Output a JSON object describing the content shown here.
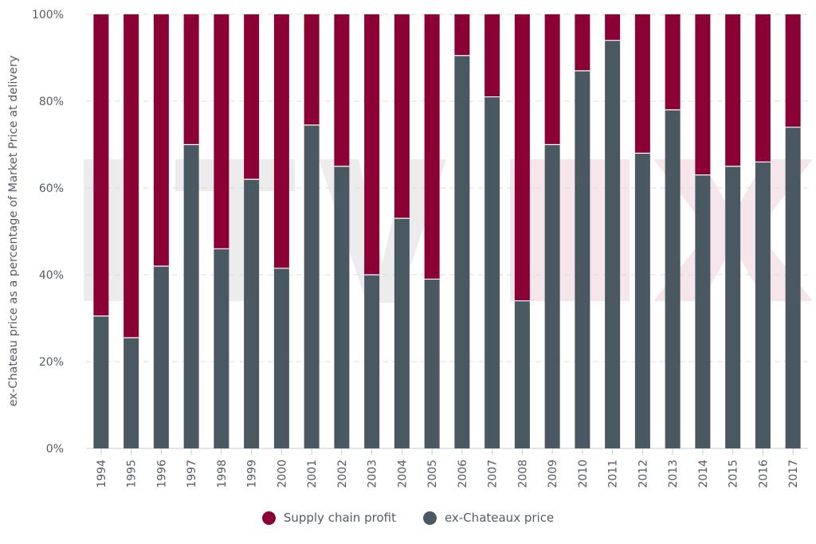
{
  "chart_data": {
    "type": "bar",
    "stacked": true,
    "categories": [
      "1994",
      "1995",
      "1996",
      "1997",
      "1998",
      "1999",
      "2000",
      "2001",
      "2002",
      "2003",
      "2004",
      "2005",
      "2006",
      "2007",
      "2008",
      "2009",
      "2010",
      "2011",
      "2012",
      "2013",
      "2014",
      "2015",
      "2016",
      "2017"
    ],
    "series": [
      {
        "name": "ex-Chateaux price",
        "color": "#4a5861",
        "values": [
          30.5,
          25.5,
          42,
          70,
          46,
          62,
          41.5,
          74.5,
          65,
          40,
          53,
          39,
          90.5,
          81,
          34,
          70,
          87,
          94,
          68,
          78,
          63,
          65,
          66,
          74
        ]
      },
      {
        "name": "Supply chain profit",
        "color": "#8b0035",
        "values": [
          69.5,
          74.5,
          58,
          30,
          54,
          38,
          58.5,
          25.5,
          35,
          60,
          47,
          61,
          9.5,
          19,
          66,
          30,
          13,
          6,
          32,
          22,
          37,
          35,
          34,
          26
        ]
      }
    ],
    "ylabel": "ex-Chateau price as a percentage of Market Price at delivery",
    "xlabel": "",
    "ylim": [
      0,
      100
    ],
    "yticks": [
      "0%",
      "20%",
      "40%",
      "60%",
      "80%",
      "100%"
    ],
    "grid": true,
    "legend_position": "bottom-center",
    "legend": [
      "Supply chain profit",
      "ex-Chateaux price"
    ]
  }
}
